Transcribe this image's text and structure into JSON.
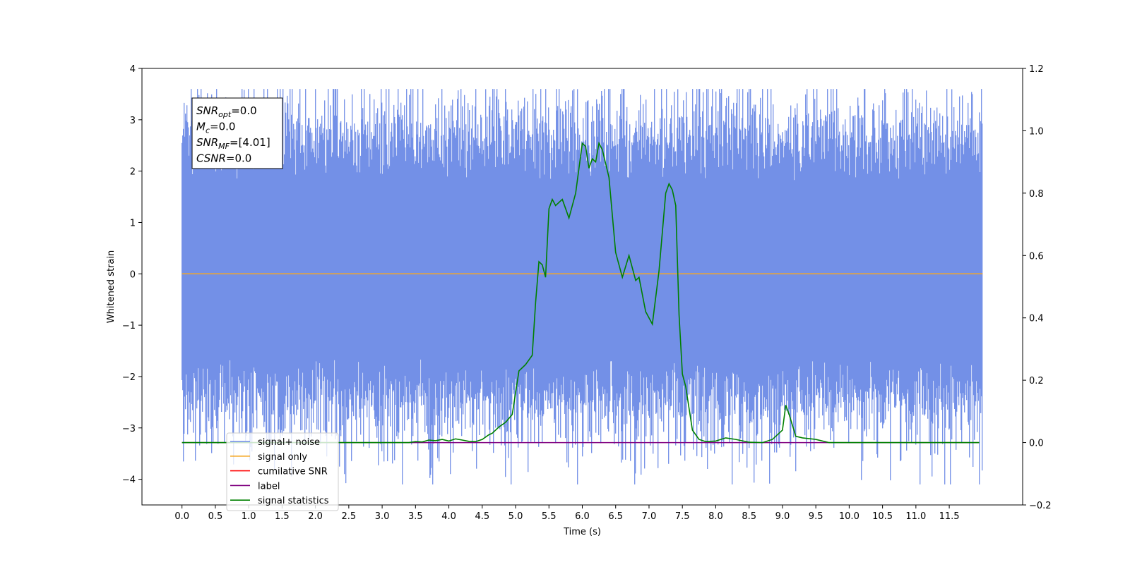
{
  "chart_data": {
    "type": "line",
    "xlabel": "Time (s)",
    "ylabel_left": "Whitened strain",
    "ylabel_right": "",
    "xlim": [
      -0.6,
      12.6
    ],
    "ylim_left": [
      -4.5,
      4.0
    ],
    "ylim_right": [
      -0.2,
      1.2
    ],
    "x_ticks": [
      "0.0",
      "0.5",
      "1.0",
      "1.5",
      "2.0",
      "2.5",
      "3.0",
      "3.5",
      "4.0",
      "4.5",
      "5.0",
      "5.5",
      "6.0",
      "6.5",
      "7.0",
      "7.5",
      "8.0",
      "8.5",
      "9.0",
      "9.5",
      "10.0",
      "10.5",
      "11.0",
      "11.5"
    ],
    "y_ticks_left": [
      "4",
      "3",
      "2",
      "1",
      "0",
      "−1",
      "−2",
      "−3",
      "−4"
    ],
    "y_ticks_right": [
      "1.2",
      "1.0",
      "0.8",
      "0.6",
      "0.4",
      "0.2",
      "0.0",
      "−0.2"
    ],
    "legend_position": "lower-left",
    "grid": false,
    "annotation": {
      "lines": [
        {
          "name": "SNR",
          "sub": "opt",
          "value": "=0.0"
        },
        {
          "name": "M",
          "sub": "c",
          "value": "=0.0"
        },
        {
          "name": "SNR",
          "sub": "MF",
          "value": "=[4.01]"
        },
        {
          "name": "CSNR",
          "sub": "",
          "value": "=0.0"
        }
      ]
    },
    "series": [
      {
        "name": "signal+ noise",
        "color": "#6b8ae6",
        "axis": "left",
        "kind": "noise",
        "x_range": [
          0.0,
          12.0
        ],
        "envelope": {
          "typical_max": 2.4,
          "typical_min": -2.2,
          "peak_max": 3.6,
          "peak_min": -4.1
        }
      },
      {
        "name": "signal only",
        "color": "#f5a623",
        "axis": "left",
        "kind": "constant",
        "x_range": [
          0.0,
          12.0
        ],
        "y": 0.0
      },
      {
        "name": "cumilative SNR",
        "color": "#ff0000",
        "axis": "right",
        "kind": "hidden"
      },
      {
        "name": "label",
        "color": "#800080",
        "axis": "right",
        "kind": "constant",
        "x_range": [
          0.0,
          11.95
        ],
        "y": 0.0
      },
      {
        "name": "signal statistics",
        "color": "#008000",
        "axis": "right",
        "kind": "line",
        "x": [
          0.0,
          0.5,
          1.0,
          1.5,
          2.0,
          2.5,
          2.8,
          3.0,
          3.2,
          3.4,
          3.5,
          3.6,
          3.7,
          3.8,
          3.9,
          4.0,
          4.1,
          4.2,
          4.3,
          4.4,
          4.5,
          4.6,
          4.65,
          4.75,
          4.85,
          4.95,
          5.05,
          5.15,
          5.25,
          5.3,
          5.35,
          5.4,
          5.45,
          5.5,
          5.55,
          5.6,
          5.7,
          5.8,
          5.9,
          6.0,
          6.05,
          6.1,
          6.15,
          6.2,
          6.25,
          6.3,
          6.4,
          6.5,
          6.6,
          6.7,
          6.8,
          6.85,
          6.95,
          7.05,
          7.15,
          7.25,
          7.3,
          7.35,
          7.4,
          7.45,
          7.5,
          7.55,
          7.65,
          7.75,
          7.85,
          8.0,
          8.15,
          8.3,
          8.5,
          8.7,
          8.85,
          9.0,
          9.05,
          9.1,
          9.2,
          9.3,
          9.5,
          9.7,
          10.0,
          11.0,
          11.95
        ],
        "y": [
          0.0,
          0.0,
          0.0,
          0.0,
          0.0,
          0.0,
          0.0,
          0.0,
          0.0,
          0.0,
          0.003,
          0.002,
          0.008,
          0.006,
          0.01,
          0.005,
          0.012,
          0.008,
          0.004,
          0.003,
          0.01,
          0.025,
          0.03,
          0.05,
          0.065,
          0.09,
          0.23,
          0.25,
          0.28,
          0.45,
          0.58,
          0.57,
          0.53,
          0.75,
          0.78,
          0.76,
          0.78,
          0.72,
          0.8,
          0.96,
          0.95,
          0.88,
          0.91,
          0.9,
          0.96,
          0.94,
          0.85,
          0.61,
          0.53,
          0.6,
          0.52,
          0.53,
          0.42,
          0.38,
          0.55,
          0.8,
          0.83,
          0.81,
          0.76,
          0.41,
          0.22,
          0.18,
          0.04,
          0.01,
          0.003,
          0.005,
          0.015,
          0.01,
          0.001,
          0.0,
          0.01,
          0.04,
          0.12,
          0.09,
          0.02,
          0.015,
          0.01,
          0.0,
          0.0,
          0.0,
          0.0
        ]
      }
    ]
  }
}
